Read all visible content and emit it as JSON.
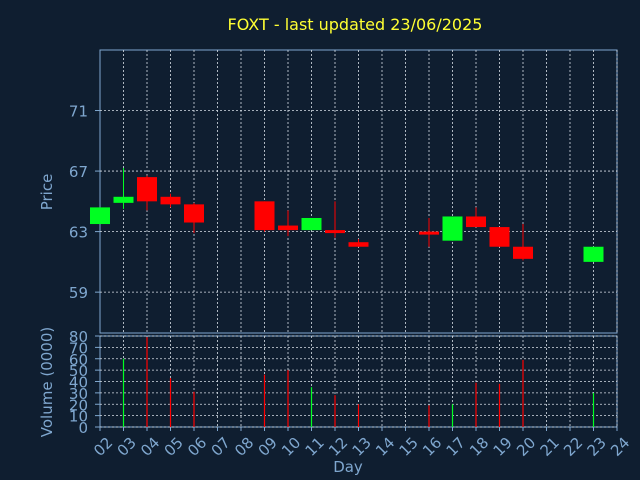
{
  "chart_data": {
    "type": "candlestick",
    "title": "FOXT - last updated 23/06/2025",
    "xlabel": "Day",
    "x_tick_labels": [
      "02",
      "03",
      "04",
      "05",
      "06",
      "07",
      "08",
      "09",
      "10",
      "11",
      "12",
      "13",
      "14",
      "15",
      "16",
      "17",
      "18",
      "19",
      "20",
      "21",
      "22",
      "23",
      "24"
    ],
    "price": {
      "ylabel": "Price",
      "ylim": [
        56.3,
        75.0
      ],
      "y_ticks": [
        59,
        63,
        67,
        71
      ],
      "grid": true,
      "candles": [
        {
          "day": "02",
          "open": 63.5,
          "high": 64.6,
          "low": 63.5,
          "close": 64.6
        },
        {
          "day": "03",
          "open": 64.9,
          "high": 67.2,
          "low": 64.5,
          "close": 65.3
        },
        {
          "day": "04",
          "open": 66.6,
          "high": 66.7,
          "low": 64.4,
          "close": 65.0
        },
        {
          "day": "05",
          "open": 65.3,
          "high": 65.5,
          "low": 64.6,
          "close": 64.8
        },
        {
          "day": "06",
          "open": 64.8,
          "high": 64.9,
          "low": 62.9,
          "close": 63.6
        },
        {
          "day": "09",
          "open": 65.0,
          "high": 65.0,
          "low": 63.0,
          "close": 63.1
        },
        {
          "day": "10",
          "open": 63.4,
          "high": 64.4,
          "low": 62.7,
          "close": 63.1
        },
        {
          "day": "11",
          "open": 63.1,
          "high": 63.9,
          "low": 63.1,
          "close": 63.9
        },
        {
          "day": "12",
          "open": 63.1,
          "high": 65.0,
          "low": 62.6,
          "close": 63.0
        },
        {
          "day": "13",
          "open": 62.3,
          "high": 62.5,
          "low": 62.0,
          "close": 62.0
        },
        {
          "day": "16",
          "open": 63.0,
          "high": 63.9,
          "low": 62.0,
          "close": 62.9
        },
        {
          "day": "17",
          "open": 62.4,
          "high": 64.0,
          "low": 62.4,
          "close": 64.0
        },
        {
          "day": "18",
          "open": 64.0,
          "high": 64.6,
          "low": 63.3,
          "close": 63.3
        },
        {
          "day": "19",
          "open": 63.3,
          "high": 63.3,
          "low": 62.0,
          "close": 62.0
        },
        {
          "day": "20",
          "open": 62.0,
          "high": 63.5,
          "low": 61.1,
          "close": 61.2
        },
        {
          "day": "23",
          "open": 61.0,
          "high": 62.0,
          "low": 61.0,
          "close": 62.0
        }
      ]
    },
    "volume": {
      "ylabel": "Volume (0000)",
      "ylim": [
        0,
        80
      ],
      "y_ticks": [
        0,
        10,
        20,
        30,
        40,
        50,
        60,
        70,
        80
      ],
      "grid": true,
      "bars": [
        {
          "day": "02",
          "value": 0,
          "color": "up"
        },
        {
          "day": "03",
          "value": 60,
          "color": "up"
        },
        {
          "day": "04",
          "value": 79,
          "color": "down"
        },
        {
          "day": "05",
          "value": 43,
          "color": "down"
        },
        {
          "day": "06",
          "value": 31,
          "color": "down"
        },
        {
          "day": "09",
          "value": 46,
          "color": "down"
        },
        {
          "day": "10",
          "value": 50,
          "color": "down"
        },
        {
          "day": "11",
          "value": 35,
          "color": "up"
        },
        {
          "day": "12",
          "value": 28,
          "color": "down"
        },
        {
          "day": "13",
          "value": 20,
          "color": "down"
        },
        {
          "day": "16",
          "value": 19,
          "color": "down"
        },
        {
          "day": "17",
          "value": 20,
          "color": "up"
        },
        {
          "day": "18",
          "value": 39,
          "color": "down"
        },
        {
          "day": "19",
          "value": 38,
          "color": "down"
        },
        {
          "day": "20",
          "value": 59,
          "color": "down"
        },
        {
          "day": "23",
          "value": 30,
          "color": "up"
        }
      ]
    },
    "colors": {
      "background": "#0f1e30",
      "up": "#00ff22",
      "down": "#ff0000",
      "axis": "#7fa7cf",
      "grid": "#d8dfe8",
      "title": "#ffff33"
    }
  }
}
